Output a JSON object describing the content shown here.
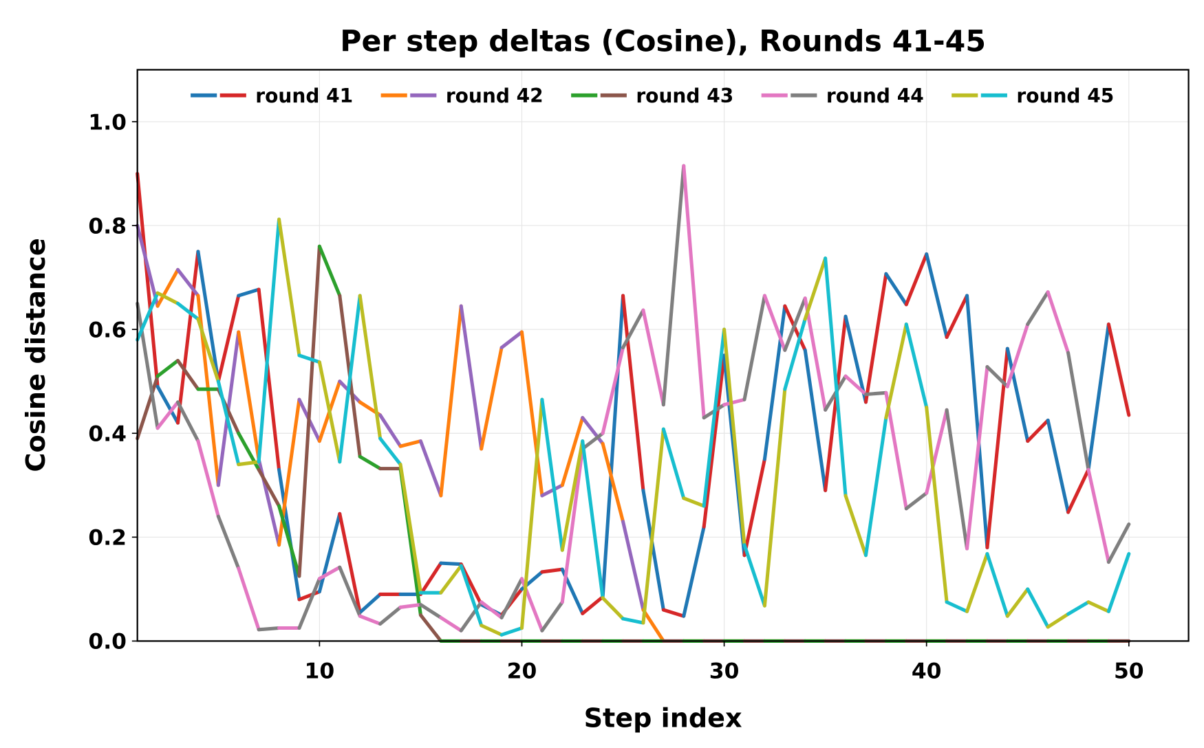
{
  "chart_data": {
    "type": "line",
    "title": "Per step deltas (Cosine), Rounds 41-45",
    "xlabel": "Step index",
    "ylabel": "Cosine distance",
    "xlim": [
      1,
      52.95
    ],
    "ylim": [
      0,
      1.1
    ],
    "xticks": [
      10,
      20,
      30,
      40,
      50
    ],
    "yticks": [
      0.0,
      0.2,
      0.4,
      0.6,
      0.8,
      1.0
    ],
    "grid": true,
    "legend_position": "top",
    "x": [
      1,
      2,
      3,
      4,
      5,
      6,
      7,
      8,
      9,
      10,
      11,
      12,
      13,
      14,
      15,
      16,
      17,
      18,
      19,
      20,
      21,
      22,
      23,
      24,
      25,
      26,
      27,
      28,
      29,
      30,
      31,
      32,
      33,
      34,
      35,
      36,
      37,
      38,
      39,
      40,
      41,
      42,
      43,
      44,
      45,
      46,
      47,
      48,
      49,
      50
    ],
    "series": [
      {
        "name": "round 41",
        "colors": [
          "#1f77b4",
          "#d62728"
        ],
        "values": [
          0.9,
          0.49,
          0.42,
          0.75,
          0.5,
          0.665,
          0.677,
          0.33,
          0.08,
          0.095,
          0.245,
          0.055,
          0.09,
          0.09,
          0.09,
          0.15,
          0.148,
          0.07,
          0.05,
          0.1,
          0.133,
          0.138,
          0.053,
          0.085,
          0.665,
          0.29,
          0.06,
          0.048,
          0.22,
          0.55,
          0.165,
          0.35,
          0.645,
          0.56,
          0.29,
          0.625,
          0.46,
          0.707,
          0.648,
          0.745,
          0.585,
          0.665,
          0.18,
          0.563,
          0.385,
          0.425,
          0.248,
          0.33,
          0.61,
          0.435
        ]
      },
      {
        "name": "round 42",
        "colors": [
          "#ff7f0e",
          "#9467bd"
        ],
        "values": [
          0.8,
          0.645,
          0.715,
          0.665,
          0.3,
          0.595,
          0.35,
          0.185,
          0.465,
          0.385,
          0.5,
          0.46,
          0.435,
          0.375,
          0.385,
          0.28,
          0.645,
          0.37,
          0.565,
          0.595,
          0.28,
          0.3,
          0.43,
          0.38,
          0.23,
          0.06,
          0,
          0,
          0,
          0,
          0,
          0,
          0,
          0,
          0,
          0,
          0,
          0,
          0,
          0,
          0,
          0,
          0,
          0,
          0,
          0,
          0,
          0,
          0,
          0
        ]
      },
      {
        "name": "round 43",
        "colors": [
          "#2ca02c",
          "#8c564b"
        ],
        "values": [
          0.39,
          0.51,
          0.54,
          0.485,
          0.485,
          0.4,
          0.33,
          0.26,
          0.125,
          0.76,
          0.665,
          0.355,
          0.332,
          0.332,
          0.05,
          0,
          0,
          0,
          0,
          0,
          0,
          0,
          0,
          0,
          0,
          0,
          0,
          0,
          0,
          0,
          0,
          0,
          0,
          0,
          0,
          0,
          0,
          0,
          0,
          0,
          0,
          0,
          0,
          0,
          0,
          0,
          0,
          0,
          0,
          0
        ]
      },
      {
        "name": "round 44",
        "colors": [
          "#e377c2",
          "#7f7f7f"
        ],
        "values": [
          0.65,
          0.41,
          0.46,
          0.385,
          0.24,
          0.14,
          0.022,
          0.025,
          0.025,
          0.12,
          0.142,
          0.048,
          0.033,
          0.065,
          0.07,
          0.045,
          0.02,
          0.075,
          0.045,
          0.12,
          0.02,
          0.075,
          0.37,
          0.4,
          0.565,
          0.637,
          0.455,
          0.915,
          0.43,
          0.455,
          0.465,
          0.665,
          0.56,
          0.66,
          0.445,
          0.51,
          0.475,
          0.478,
          0.255,
          0.285,
          0.445,
          0.178,
          0.528,
          0.49,
          0.61,
          0.672,
          0.555,
          0.33,
          0.152,
          0.225
        ]
      },
      {
        "name": "round 45",
        "colors": [
          "#bcbd22",
          "#17becf"
        ],
        "values": [
          0.58,
          0.67,
          0.65,
          0.62,
          0.5,
          0.34,
          0.345,
          0.812,
          0.55,
          0.537,
          0.345,
          0.665,
          0.39,
          0.34,
          0.093,
          0.093,
          0.145,
          0.03,
          0.012,
          0.025,
          0.465,
          0.175,
          0.385,
          0.083,
          0.043,
          0.035,
          0.408,
          0.275,
          0.26,
          0.6,
          0.185,
          0.068,
          0.485,
          0.62,
          0.737,
          0.28,
          0.165,
          0.43,
          0.61,
          0.45,
          0.075,
          0.057,
          0.168,
          0.048,
          0.1,
          0.027,
          0.052,
          0.075,
          0.057,
          0.168
        ]
      }
    ]
  }
}
